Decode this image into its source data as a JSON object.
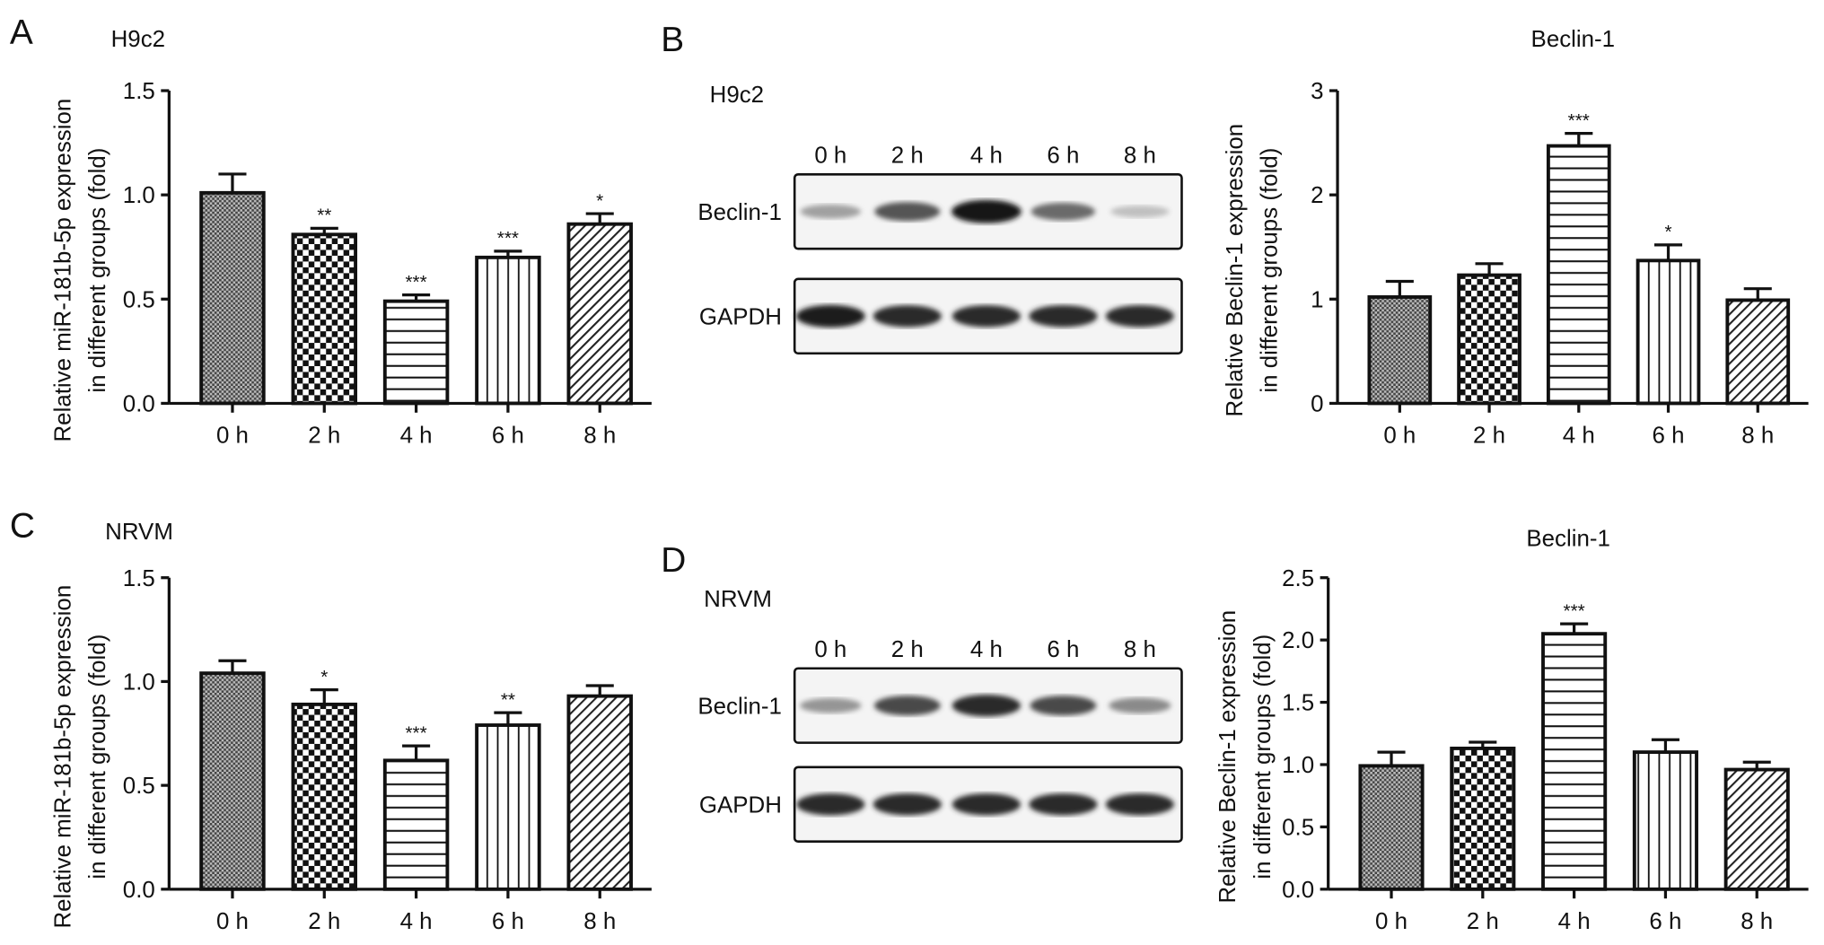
{
  "panels": [
    {
      "letter": "A",
      "cell_line": "H9c2"
    },
    {
      "letter": "B",
      "cell_line": "H9c2"
    },
    {
      "letter": "C",
      "cell_line": "NRVM"
    },
    {
      "letter": "D",
      "cell_line": "NRVM"
    }
  ],
  "blots": [
    {
      "panel": "B",
      "lanes": [
        "0 h",
        "2 h",
        "4 h",
        "6 h",
        "8 h"
      ],
      "rows": [
        {
          "label": "Beclin-1",
          "band_intensity": [
            0.35,
            0.7,
            1.0,
            0.6,
            0.2
          ]
        },
        {
          "label": "GAPDH",
          "band_intensity": [
            0.95,
            0.9,
            0.9,
            0.9,
            0.9
          ]
        }
      ]
    },
    {
      "panel": "D",
      "lanes": [
        "0 h",
        "2 h",
        "4 h",
        "6 h",
        "8 h"
      ],
      "rows": [
        {
          "label": "Beclin-1",
          "band_intensity": [
            0.4,
            0.75,
            0.9,
            0.75,
            0.45
          ]
        },
        {
          "label": "GAPDH",
          "band_intensity": [
            0.9,
            0.9,
            0.9,
            0.9,
            0.9
          ]
        }
      ]
    }
  ],
  "chart_data": [
    {
      "panel": "A",
      "type": "bar",
      "title": "",
      "ylabel": "Relative miR-181b-5p expression\nin different groups (fold)",
      "categories": [
        "0 h",
        "2 h",
        "4 h",
        "6 h",
        "8 h"
      ],
      "values": [
        1.01,
        0.81,
        0.49,
        0.7,
        0.86
      ],
      "errors": [
        0.09,
        0.03,
        0.03,
        0.03,
        0.05
      ],
      "significance": [
        "",
        "**",
        "***",
        "***",
        "*"
      ],
      "ylim": [
        0,
        1.5
      ],
      "yticks": [
        "0.0",
        "0.5",
        "1.0",
        "1.5"
      ],
      "ytick_values": [
        0,
        0.5,
        1.0,
        1.5
      ],
      "grid": false
    },
    {
      "panel": "B",
      "type": "bar",
      "title": "Beclin-1",
      "ylabel": "Relative Beclin-1 expression\nin different groups (fold)",
      "categories": [
        "0 h",
        "2 h",
        "4 h",
        "6 h",
        "8 h"
      ],
      "values": [
        1.02,
        1.23,
        2.47,
        1.37,
        0.99
      ],
      "errors": [
        0.15,
        0.11,
        0.12,
        0.15,
        0.11
      ],
      "significance": [
        "",
        "",
        "***",
        "*",
        ""
      ],
      "ylim": [
        0,
        3
      ],
      "yticks": [
        "0",
        "1",
        "2",
        "3"
      ],
      "ytick_values": [
        0,
        1,
        2,
        3
      ],
      "grid": false
    },
    {
      "panel": "C",
      "type": "bar",
      "title": "",
      "ylabel": "Relative miR-181b-5p expression\nin different groups (fold)",
      "categories": [
        "0 h",
        "2 h",
        "4 h",
        "6 h",
        "8 h"
      ],
      "values": [
        1.04,
        0.89,
        0.62,
        0.79,
        0.93
      ],
      "errors": [
        0.06,
        0.07,
        0.07,
        0.06,
        0.05
      ],
      "significance": [
        "",
        "*",
        "***",
        "**",
        ""
      ],
      "ylim": [
        0,
        1.5
      ],
      "yticks": [
        "0.0",
        "0.5",
        "1.0",
        "1.5"
      ],
      "ytick_values": [
        0,
        0.5,
        1.0,
        1.5
      ],
      "grid": false
    },
    {
      "panel": "D",
      "type": "bar",
      "title": "Beclin-1",
      "ylabel": "Relative Beclin-1 expression\nin different groups (fold)",
      "categories": [
        "0 h",
        "2 h",
        "4 h",
        "6 h",
        "8 h"
      ],
      "values": [
        0.99,
        1.13,
        2.05,
        1.1,
        0.96
      ],
      "errors": [
        0.11,
        0.05,
        0.08,
        0.1,
        0.06
      ],
      "significance": [
        "",
        "",
        "***",
        "",
        ""
      ],
      "ylim": [
        0,
        2.5
      ],
      "yticks": [
        "0.0",
        "0.5",
        "1.0",
        "1.5",
        "2.0",
        "2.5"
      ],
      "ytick_values": [
        0,
        0.5,
        1.0,
        1.5,
        2.0,
        2.5
      ],
      "grid": false
    }
  ],
  "bar_patterns": [
    "dense-crosshatch",
    "checkerboard",
    "horizontal-lines",
    "vertical-lines",
    "diagonal-lines"
  ]
}
